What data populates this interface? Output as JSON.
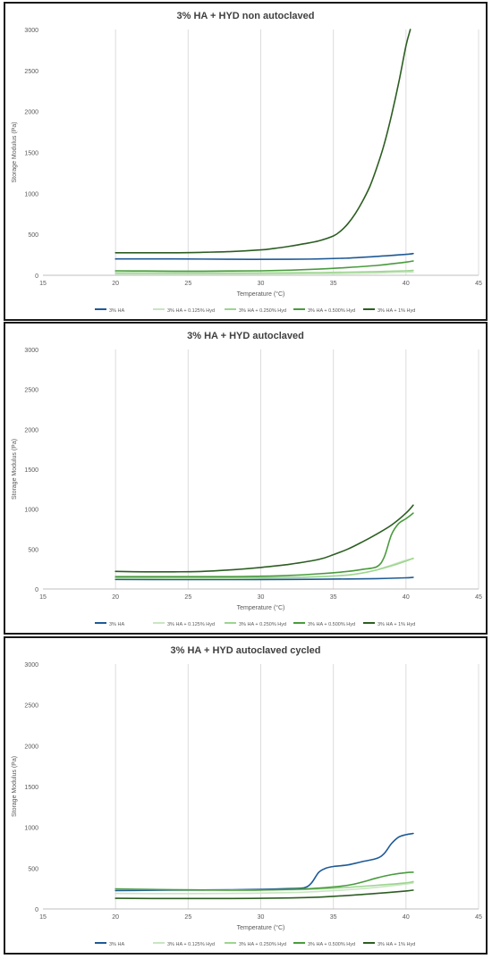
{
  "chart_data": [
    {
      "type": "line",
      "title": "3% HA + HYD non autoclaved",
      "xlabel": "Temperature (°C)",
      "ylabel": "Storage Modulus (Pa)",
      "xlim": [
        15,
        45
      ],
      "ylim": [
        0,
        3000
      ],
      "xticks": [
        15,
        20,
        25,
        30,
        35,
        40,
        45
      ],
      "yticks": [
        0,
        500,
        1000,
        1500,
        2000,
        2500,
        3000
      ],
      "grid": "vertical",
      "legend": "bottom",
      "series": [
        {
          "name": "3% HA",
          "color": "#1f5a96",
          "x": [
            20,
            24,
            28,
            32,
            34,
            36,
            38,
            40,
            40.5
          ],
          "y": [
            200,
            200,
            195,
            195,
            200,
            210,
            230,
            255,
            265
          ]
        },
        {
          "name": "3% HA + 0.125% Hyd",
          "color": "#c9e6c1",
          "x": [
            20,
            24,
            28,
            32,
            34,
            36,
            38,
            40,
            40.5
          ],
          "y": [
            15,
            15,
            15,
            18,
            20,
            22,
            28,
            38,
            40
          ]
        },
        {
          "name": "3% HA + 0.250% Hyd",
          "color": "#9dd590",
          "x": [
            20,
            24,
            28,
            32,
            34,
            36,
            38,
            40,
            40.5
          ],
          "y": [
            30,
            28,
            28,
            30,
            33,
            38,
            45,
            55,
            60
          ]
        },
        {
          "name": "3% HA + 0.500% Hyd",
          "color": "#4a9b3e",
          "x": [
            20,
            22,
            24,
            26,
            28,
            30,
            32,
            34,
            36,
            38,
            39,
            40,
            40.5
          ],
          "y": [
            55,
            52,
            50,
            50,
            52,
            55,
            62,
            75,
            95,
            120,
            140,
            160,
            175
          ]
        },
        {
          "name": "3% HA + 1% Hyd",
          "color": "#2c5e22",
          "x": [
            20,
            22,
            24,
            26,
            28,
            30,
            31,
            32,
            33,
            34,
            35,
            35.5,
            36,
            36.5,
            37,
            37.5,
            38,
            38.5,
            39,
            39.5,
            40,
            40.3
          ],
          "y": [
            275,
            275,
            275,
            280,
            290,
            310,
            330,
            355,
            385,
            420,
            480,
            540,
            630,
            750,
            900,
            1080,
            1320,
            1600,
            1950,
            2350,
            2800,
            3000
          ]
        }
      ]
    },
    {
      "type": "line",
      "title": "3% HA + HYD autoclaved",
      "xlabel": "Temperature (°C)",
      "ylabel": "Storage Modulus (Pa)",
      "xlim": [
        15,
        45
      ],
      "ylim": [
        0,
        3000
      ],
      "xticks": [
        15,
        20,
        25,
        30,
        35,
        40,
        45
      ],
      "yticks": [
        0,
        500,
        1000,
        1500,
        2000,
        2500,
        3000
      ],
      "grid": "vertical",
      "legend": "bottom",
      "series": [
        {
          "name": "3% HA",
          "color": "#1f5a96",
          "x": [
            20,
            24,
            28,
            32,
            36,
            38,
            40,
            40.5
          ],
          "y": [
            120,
            118,
            118,
            120,
            125,
            130,
            140,
            145
          ]
        },
        {
          "name": "3% HA + 0.125% Hyd",
          "color": "#c9e6c1",
          "x": [
            20,
            24,
            28,
            32,
            34,
            36,
            37,
            38,
            39,
            40,
            40.5
          ],
          "y": [
            135,
            135,
            135,
            140,
            150,
            175,
            200,
            240,
            300,
            360,
            380
          ]
        },
        {
          "name": "3% HA + 0.250% Hyd",
          "color": "#9dd590",
          "x": [
            20,
            24,
            28,
            32,
            34,
            36,
            37,
            38,
            39,
            40,
            40.5
          ],
          "y": [
            140,
            140,
            140,
            145,
            155,
            175,
            200,
            240,
            290,
            350,
            385
          ]
        },
        {
          "name": "3% HA + 0.500% Hyd",
          "color": "#4a9b3e",
          "x": [
            20,
            24,
            28,
            30,
            32,
            34,
            36,
            37,
            38,
            38.5,
            39,
            39.5,
            40,
            40.5
          ],
          "y": [
            155,
            155,
            155,
            160,
            170,
            190,
            220,
            245,
            280,
            400,
            680,
            820,
            880,
            950
          ]
        },
        {
          "name": "3% HA + 1% Hyd",
          "color": "#2c5e22",
          "x": [
            20,
            22,
            24,
            26,
            28,
            30,
            32,
            34,
            35,
            36,
            37,
            38,
            39,
            40,
            40.5
          ],
          "y": [
            220,
            215,
            215,
            220,
            240,
            270,
            310,
            370,
            430,
            500,
            590,
            690,
            800,
            950,
            1050
          ]
        }
      ]
    },
    {
      "type": "line",
      "title": "3% HA + HYD autoclaved cycled",
      "xlabel": "Temperature (°C)",
      "ylabel": "Storage Modulus (Pa)",
      "xlim": [
        15,
        45
      ],
      "ylim": [
        0,
        3000
      ],
      "xticks": [
        15,
        20,
        25,
        30,
        35,
        40,
        45
      ],
      "yticks": [
        0,
        500,
        1000,
        1500,
        2000,
        2500,
        3000
      ],
      "grid": "vertical",
      "legend": "bottom",
      "series": [
        {
          "name": "3% HA",
          "color": "#1f5a96",
          "x": [
            20,
            22,
            24,
            26,
            28,
            30,
            32,
            33,
            33.5,
            34,
            34.5,
            35,
            36,
            37,
            38,
            38.5,
            39,
            39.5,
            40,
            40.5
          ],
          "y": [
            225,
            228,
            230,
            232,
            235,
            240,
            250,
            260,
            320,
            450,
            500,
            520,
            540,
            580,
            620,
            680,
            800,
            880,
            910,
            925
          ]
        },
        {
          "name": "3% HA + 0.125% Hyd",
          "color": "#c9e6c1",
          "x": [
            20,
            24,
            28,
            32,
            34,
            36,
            38,
            40,
            40.5
          ],
          "y": [
            190,
            188,
            190,
            200,
            215,
            235,
            265,
            305,
            320
          ]
        },
        {
          "name": "3% HA + 0.250% Hyd",
          "color": "#9dd590",
          "x": [
            20,
            24,
            28,
            32,
            34,
            36,
            38,
            40,
            40.5
          ],
          "y": [
            240,
            235,
            232,
            235,
            245,
            265,
            290,
            320,
            335
          ]
        },
        {
          "name": "3% HA + 0.500% Hyd",
          "color": "#4a9b3e",
          "x": [
            20,
            22,
            24,
            26,
            28,
            30,
            32,
            34,
            36,
            37,
            38,
            39,
            40,
            40.5
          ],
          "y": [
            245,
            240,
            235,
            232,
            230,
            232,
            240,
            255,
            290,
            330,
            380,
            420,
            445,
            450
          ]
        },
        {
          "name": "3% HA + 1% Hyd",
          "color": "#2c5e22",
          "x": [
            20,
            24,
            28,
            32,
            34,
            36,
            38,
            40,
            40.5
          ],
          "y": [
            130,
            128,
            128,
            135,
            145,
            165,
            190,
            220,
            230
          ]
        }
      ]
    }
  ]
}
